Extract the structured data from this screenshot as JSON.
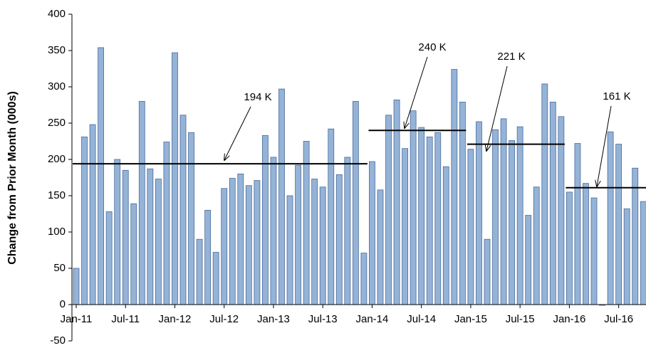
{
  "chart_data": {
    "type": "bar",
    "y_axis_label": "Change from Prior Month (000s)",
    "color": "#95b3d7",
    "edge_color": "#4a6c9b",
    "categories": [
      "Jan-11",
      null,
      null,
      null,
      null,
      null,
      "Jul-11",
      null,
      null,
      null,
      null,
      null,
      "Jan-12",
      null,
      null,
      null,
      null,
      null,
      "Jul-12",
      null,
      null,
      null,
      null,
      null,
      "Jan-13",
      null,
      null,
      null,
      null,
      null,
      "Jul-13",
      null,
      null,
      null,
      null,
      null,
      "Jan-14",
      null,
      null,
      null,
      null,
      null,
      "Jul-14",
      null,
      null,
      null,
      null,
      null,
      "Jan-15",
      null,
      null,
      null,
      null,
      null,
      "Jul-15",
      null,
      null,
      null,
      null,
      null,
      "Jan-16",
      null,
      null,
      null,
      null,
      null,
      "Jul-16",
      null,
      null,
      null
    ],
    "values": [
      50,
      231,
      248,
      354,
      128,
      200,
      185,
      139,
      280,
      187,
      173,
      224,
      347,
      261,
      237,
      90,
      130,
      72,
      160,
      174,
      180,
      164,
      171,
      233,
      203,
      297,
      150,
      192,
      225,
      173,
      162,
      242,
      179,
      203,
      280,
      71,
      197,
      158,
      261,
      282,
      215,
      267,
      244,
      231,
      237,
      190,
      324,
      279,
      214,
      252,
      90,
      241,
      256,
      226,
      245,
      123,
      162,
      304,
      279,
      259,
      155,
      222,
      167,
      147,
      -1,
      238,
      221,
      132,
      188,
      142
    ],
    "ylim": [
      -50,
      400
    ],
    "yticks": [
      -50,
      0,
      50,
      100,
      150,
      200,
      250,
      300,
      350,
      400
    ],
    "averages": [
      {
        "label": "194 K",
        "value": 194
      },
      {
        "label": "240 K",
        "value": 240
      },
      {
        "label": "221 K",
        "value": 221
      },
      {
        "label": "161 K",
        "value": 161
      }
    ]
  }
}
